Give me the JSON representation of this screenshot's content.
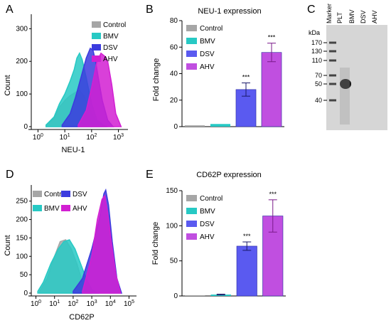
{
  "panels": {
    "A": "A",
    "B": "B",
    "C": "C",
    "D": "D",
    "E": "E"
  },
  "colors": {
    "control": "#a6a6a6",
    "bmv": "#27c9c4",
    "dsv": "#3b3bde",
    "ahv": "#d21fd2",
    "bar_dsv": "#5a5af0",
    "bar_ahv": "#c04fe0",
    "blot_bg": "#d6d6d6"
  },
  "chart_data": [
    {
      "id": "A",
      "type": "area",
      "title": "",
      "xlabel": "NEU-1",
      "ylabel": "Count",
      "x_scale": "log",
      "x_ticks": [
        "10^0",
        "10^1",
        "10^2",
        "10^3"
      ],
      "y_ticks": [
        "0",
        "100",
        "200",
        "300"
      ],
      "ylim": [
        0,
        340
      ],
      "legend": [
        "Control",
        "BMV",
        "DSV",
        "AHV"
      ],
      "series": [
        {
          "name": "Control",
          "points": [
            [
              0.3,
              5
            ],
            [
              0.6,
              25
            ],
            [
              0.8,
              60
            ],
            [
              1.0,
              80
            ],
            [
              1.2,
              95
            ],
            [
              1.4,
              105
            ],
            [
              1.55,
              112
            ],
            [
              1.7,
              95
            ],
            [
              1.9,
              60
            ],
            [
              2.1,
              25
            ],
            [
              2.3,
              8
            ],
            [
              2.6,
              0
            ]
          ]
        },
        {
          "name": "BMV",
          "points": [
            [
              0.3,
              5
            ],
            [
              0.6,
              30
            ],
            [
              0.8,
              70
            ],
            [
              1.0,
              100
            ],
            [
              1.2,
              140
            ],
            [
              1.35,
              175
            ],
            [
              1.45,
              210
            ],
            [
              1.55,
              225
            ],
            [
              1.65,
              205
            ],
            [
              1.8,
              150
            ],
            [
              2.0,
              70
            ],
            [
              2.2,
              20
            ],
            [
              2.5,
              0
            ]
          ]
        },
        {
          "name": "DSV",
          "points": [
            [
              0.9,
              5
            ],
            [
              1.2,
              40
            ],
            [
              1.4,
              90
            ],
            [
              1.6,
              150
            ],
            [
              1.8,
              210
            ],
            [
              1.95,
              240
            ],
            [
              2.05,
              235
            ],
            [
              2.15,
              200
            ],
            [
              2.25,
              150
            ],
            [
              2.4,
              80
            ],
            [
              2.6,
              20
            ],
            [
              2.8,
              0
            ]
          ]
        },
        {
          "name": "AHV",
          "points": [
            [
              1.5,
              5
            ],
            [
              1.8,
              50
            ],
            [
              2.0,
              120
            ],
            [
              2.2,
              200
            ],
            [
              2.35,
              225
            ],
            [
              2.5,
              215
            ],
            [
              2.6,
              200
            ],
            [
              2.75,
              130
            ],
            [
              2.9,
              40
            ],
            [
              3.1,
              0
            ]
          ]
        }
      ]
    },
    {
      "id": "B",
      "type": "bar",
      "title": "NEU-1 expression",
      "xlabel": "",
      "ylabel": "Fold change",
      "ylim": [
        0,
        80
      ],
      "y_ticks": [
        0,
        20,
        40,
        60,
        80
      ],
      "categories": [
        "Control",
        "BMV",
        "DSV",
        "AHV"
      ],
      "values": [
        1,
        2,
        28,
        56
      ],
      "errors": [
        0.3,
        0.5,
        5,
        7
      ],
      "annotations": [
        "",
        "",
        "***",
        "***"
      ],
      "legend": [
        "Control",
        "BMV",
        "DSV",
        "AHV"
      ]
    },
    {
      "id": "C",
      "type": "blot",
      "unit_label": "kDa",
      "lanes": [
        "Marker",
        "PLT",
        "BMV",
        "DSV",
        "AHV"
      ],
      "markers": [
        170,
        130,
        110,
        70,
        50,
        40
      ]
    },
    {
      "id": "D",
      "type": "area",
      "title": "",
      "xlabel": "CD62P",
      "ylabel": "Count",
      "x_scale": "log",
      "x_ticks": [
        "10^0",
        "10^1",
        "10^2",
        "10^3",
        "10^4",
        "10^5"
      ],
      "y_ticks": [
        "0",
        "50",
        "100",
        "150",
        "200",
        "250"
      ],
      "ylim": [
        0,
        290
      ],
      "legend": [
        "Control",
        "DSV",
        "BMV",
        "AHV"
      ],
      "series": [
        {
          "name": "Control",
          "points": [
            [
              0.2,
              5
            ],
            [
              0.6,
              40
            ],
            [
              1.0,
              100
            ],
            [
              1.3,
              140
            ],
            [
              1.6,
              145
            ],
            [
              1.9,
              120
            ],
            [
              2.2,
              80
            ],
            [
              2.5,
              30
            ],
            [
              2.8,
              5
            ],
            [
              3.0,
              0
            ]
          ]
        },
        {
          "name": "BMV",
          "points": [
            [
              0.1,
              5
            ],
            [
              0.4,
              30
            ],
            [
              0.8,
              80
            ],
            [
              1.2,
              120
            ],
            [
              1.5,
              140
            ],
            [
              1.8,
              145
            ],
            [
              2.1,
              120
            ],
            [
              2.4,
              80
            ],
            [
              2.7,
              40
            ],
            [
              3.0,
              10
            ],
            [
              3.3,
              0
            ]
          ]
        },
        {
          "name": "DSV",
          "points": [
            [
              2.0,
              5
            ],
            [
              2.5,
              40
            ],
            [
              3.0,
              120
            ],
            [
              3.4,
              200
            ],
            [
              3.65,
              270
            ],
            [
              3.75,
              280
            ],
            [
              3.9,
              240
            ],
            [
              4.1,
              140
            ],
            [
              4.35,
              40
            ],
            [
              4.6,
              0
            ]
          ]
        },
        {
          "name": "AHV",
          "points": [
            [
              2.5,
              5
            ],
            [
              3.0,
              100
            ],
            [
              3.3,
              200
            ],
            [
              3.55,
              255
            ],
            [
              3.7,
              265
            ],
            [
              3.85,
              220
            ],
            [
              4.05,
              140
            ],
            [
              4.3,
              50
            ],
            [
              4.55,
              0
            ]
          ]
        }
      ]
    },
    {
      "id": "E",
      "type": "bar",
      "title": "CD62P expression",
      "xlabel": "",
      "ylabel": "Fold change",
      "ylim": [
        0,
        150
      ],
      "y_ticks": [
        0,
        50,
        100,
        150
      ],
      "categories": [
        "Control",
        "BMV",
        "DSV",
        "AHV"
      ],
      "values": [
        1,
        2,
        71,
        114
      ],
      "errors": [
        0.3,
        0.6,
        6,
        23
      ],
      "annotations": [
        "",
        "",
        "***",
        "***"
      ],
      "legend": [
        "Control",
        "BMV",
        "DSV",
        "AHV"
      ]
    }
  ]
}
